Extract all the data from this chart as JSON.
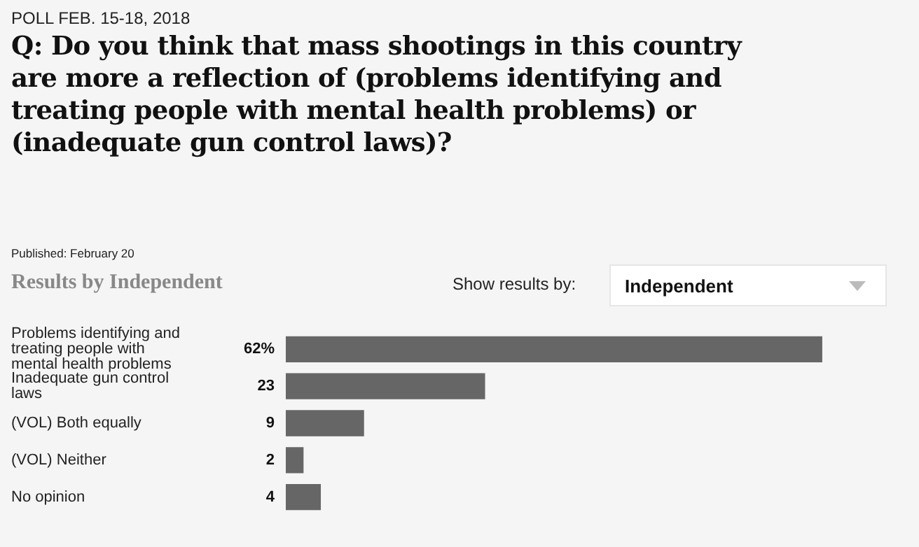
{
  "chart_data": {
    "type": "bar",
    "orientation": "horizontal",
    "title": "Q: Do you think that mass shootings in this country are more a reflection of (problems identifying and treating people with mental health problems) or (inadequate gun control laws)?",
    "subtitle": "Results by Independent",
    "annotations": [
      "POLL FEB. 15-18, 2018",
      "Published: February 20",
      "Show results by:",
      "Independent"
    ],
    "categories": [
      "Problems identifying and treating people with mental health problems",
      "Inadequate gun control laws",
      "(VOL) Both equally",
      "(VOL) Neither",
      "No opinion"
    ],
    "values": [
      62,
      23,
      9,
      2,
      4
    ],
    "value_labels": [
      "62%",
      "23",
      "9",
      "2",
      "4"
    ],
    "color": "#666666",
    "legend": false,
    "tick_labels": "y"
  }
}
